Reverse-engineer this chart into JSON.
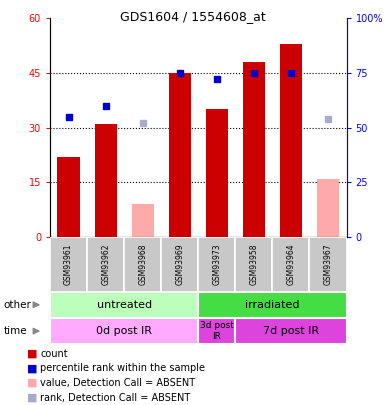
{
  "title": "GDS1604 / 1554608_at",
  "samples": [
    "GSM93961",
    "GSM93962",
    "GSM93968",
    "GSM93969",
    "GSM93973",
    "GSM93958",
    "GSM93964",
    "GSM93967"
  ],
  "bar_values": [
    22,
    31,
    null,
    45,
    35,
    48,
    53,
    null
  ],
  "bar_absent_values": [
    null,
    null,
    9,
    null,
    null,
    null,
    null,
    16
  ],
  "rank_values": [
    55,
    60,
    null,
    75,
    72,
    75,
    75,
    null
  ],
  "rank_absent_values": [
    null,
    null,
    52,
    null,
    null,
    null,
    null,
    54
  ],
  "bar_color": "#cc0000",
  "bar_absent_color": "#ffaaaa",
  "rank_color": "#0000cc",
  "rank_absent_color": "#aaaacc",
  "ylim_left": [
    0,
    60
  ],
  "ylim_right": [
    0,
    100
  ],
  "yticks_left": [
    0,
    15,
    30,
    45,
    60
  ],
  "yticks_right": [
    0,
    25,
    50,
    75,
    100
  ],
  "ytick_labels_left": [
    "0",
    "15",
    "30",
    "45",
    "60"
  ],
  "ytick_labels_right": [
    "0",
    "25",
    "50",
    "75",
    "100%"
  ],
  "groups_other": [
    {
      "label": "untreated",
      "start": 0,
      "end": 4,
      "color": "#bbffbb"
    },
    {
      "label": "irradiated",
      "start": 4,
      "end": 8,
      "color": "#44dd44"
    }
  ],
  "groups_time": [
    {
      "label": "0d post IR",
      "start": 0,
      "end": 4,
      "color": "#ffaaff"
    },
    {
      "label": "3d post\nIR",
      "start": 4,
      "end": 5,
      "color": "#dd44dd"
    },
    {
      "label": "7d post IR",
      "start": 5,
      "end": 8,
      "color": "#dd44dd"
    }
  ],
  "legend_items": [
    {
      "label": "count",
      "color": "#cc0000"
    },
    {
      "label": "percentile rank within the sample",
      "color": "#0000cc"
    },
    {
      "label": "value, Detection Call = ABSENT",
      "color": "#ffaaaa"
    },
    {
      "label": "rank, Detection Call = ABSENT",
      "color": "#aaaacc"
    }
  ]
}
